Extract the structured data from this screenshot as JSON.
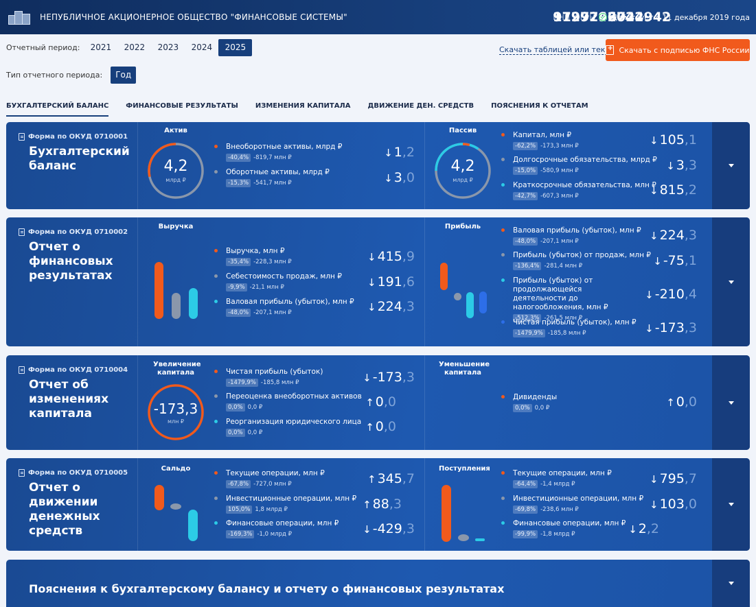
{
  "header": {
    "company": "НЕПУБЛИЧНОЕ АКЦИОНЕРНОЕ ОБЩЕСТВО \"ФИНАНСОВЫЕ СИСТЕМЫ\"",
    "inn_label": "ИНН",
    "inn": "9729292044",
    "ogrn_label": "ОГРН",
    "ogrn": "1197746722942",
    "status": "Действует с 11 декабря 2019 года"
  },
  "filters": {
    "period_label": "Отчетный период:",
    "years": [
      "2021",
      "2022",
      "2023",
      "2024",
      "2025"
    ],
    "selected_year": "2025",
    "type_label": "Тип отчетного периода:",
    "type_value": "Год",
    "download_link": "Скачать таблицей или текстом",
    "download_button": "Скачать с подписью ФНС России"
  },
  "tabs": [
    "БУХГАЛТЕРСКИЙ БАЛАНС",
    "ФИНАНСОВЫЕ РЕЗУЛЬТАТЫ",
    "ИЗМЕНЕНИЯ КАПИТАЛА",
    "ДВИЖЕНИЕ ДЕН. СРЕДСТВ",
    "ПОЯСНЕНИЯ К ОТЧЕТАМ"
  ],
  "colors": {
    "orange": "#f15a1c",
    "grey": "#8a97ab",
    "cyan": "#2ccbe6",
    "blue": "#2d6ee8"
  },
  "cards": {
    "balance": {
      "okud": "Форма по ОКУД 0710001",
      "title": "Бухгалтерский баланс",
      "left": {
        "title": "Актив",
        "ring_value": "4,2",
        "ring_unit": "млрд ₽",
        "items": [
          {
            "name": "Внеоборотные активы, млрд ₽",
            "pct": "-40,4%",
            "abs": "-819,7 млн ₽",
            "arrow": "↓",
            "int": "1",
            "frac": ",2",
            "color": "orange"
          },
          {
            "name": "Оборотные активы, млрд ₽",
            "pct": "-15,3%",
            "abs": "-541,7 млн ₽",
            "arrow": "↓",
            "int": "3",
            "frac": ",0",
            "color": "grey"
          }
        ]
      },
      "right": {
        "title": "Пассив",
        "ring_value": "4,2",
        "ring_unit": "млрд ₽",
        "items": [
          {
            "name": "Капитал, млн ₽",
            "pct": "-62,2%",
            "abs": "-173,3 млн ₽",
            "arrow": "↓",
            "int": "105",
            "frac": ",1",
            "color": "orange"
          },
          {
            "name": "Долгосрочные обязательства, млрд ₽",
            "pct": "-15,0%",
            "abs": "-580,9 млн ₽",
            "arrow": "↓",
            "int": "3",
            "frac": ",3",
            "color": "grey"
          },
          {
            "name": "Краткосрочные обязательства, млн ₽",
            "pct": "-42,7%",
            "abs": "-607,3 млн ₽",
            "arrow": "↓",
            "int": "815",
            "frac": ",2",
            "color": "cyan"
          }
        ]
      }
    },
    "results": {
      "okud": "Форма по ОКУД 0710002",
      "title": "Отчет о финансовых результатах",
      "left": {
        "title": "Выручка",
        "items": [
          {
            "name": "Выручка, млн ₽",
            "pct": "-35,4%",
            "abs": "-228,3 млн ₽",
            "arrow": "↓",
            "int": "415",
            "frac": ",9",
            "color": "orange"
          },
          {
            "name": "Себестоимость продаж, млн ₽",
            "pct": "-9,9%",
            "abs": "-21,1 млн ₽",
            "arrow": "↓",
            "int": "191",
            "frac": ",6",
            "color": "grey"
          },
          {
            "name": "Валовая прибыль (убыток), млн ₽",
            "pct": "-48,0%",
            "abs": "-207,1 млн ₽",
            "arrow": "↓",
            "int": "224",
            "frac": ",3",
            "color": "cyan"
          }
        ]
      },
      "right": {
        "title": "Прибыль",
        "items": [
          {
            "name": "Валовая прибыль (убыток), млн ₽",
            "pct": "-48,0%",
            "abs": "-207,1 млн ₽",
            "arrow": "↓",
            "int": "224",
            "frac": ",3",
            "color": "orange"
          },
          {
            "name": "Прибыль (убыток) от продаж, млн ₽",
            "pct": "-136,4%",
            "abs": "-281,4 млн ₽",
            "arrow": "↓",
            "int": "-75",
            "frac": ",1",
            "color": "grey"
          },
          {
            "name": "Прибыль (убыток) от продолжающейся деятельности до налогообложения, млн ₽",
            "pct": "-512,3%",
            "abs": "-261,5 млн ₽",
            "arrow": "↓",
            "int": "-210",
            "frac": ",4",
            "color": "cyan"
          },
          {
            "name": "Чистая прибыль (убыток), млн ₽",
            "pct": "-1479,9%",
            "abs": "-185,8 млн ₽",
            "arrow": "↓",
            "int": "-173",
            "frac": ",3",
            "color": "blue"
          }
        ]
      }
    },
    "capital": {
      "okud": "Форма по ОКУД 0710004",
      "title": "Отчет об изменениях капитала",
      "left": {
        "title": "Увеличение капитала",
        "ring_value": "-173,3",
        "ring_unit": "млн ₽",
        "items": [
          {
            "name": "Чистая прибыль (убыток)",
            "pct": "-1479,9%",
            "abs": "-185,8 млн ₽",
            "arrow": "↓",
            "int": "-173",
            "frac": ",3",
            "color": "orange"
          },
          {
            "name": "Переоценка внеоборотных активов",
            "pct": "0,0%",
            "abs": "0,0 ₽",
            "arrow": "↑",
            "int": "0",
            "frac": ",0",
            "color": "grey"
          },
          {
            "name": "Реорганизация юридического лица",
            "pct": "0,0%",
            "abs": "0,0 ₽",
            "arrow": "↑",
            "int": "0",
            "frac": ",0",
            "color": "cyan"
          }
        ]
      },
      "right": {
        "title": "Уменьшение капитала",
        "items": [
          {
            "name": "Дивиденды",
            "pct": "0,0%",
            "abs": "0,0 ₽",
            "arrow": "↑",
            "int": "0",
            "frac": ",0",
            "color": "orange"
          }
        ]
      }
    },
    "cashflow": {
      "okud": "Форма по ОКУД 0710005",
      "title": "Отчет о движении денежных средств",
      "left": {
        "title": "Сальдо",
        "items": [
          {
            "name": "Текущие операции, млн ₽",
            "pct": "-67,8%",
            "abs": "-727,0 млн ₽",
            "arrow": "↑",
            "int": "345",
            "frac": ",7",
            "color": "orange"
          },
          {
            "name": "Инвестиционные операции, млн ₽",
            "pct": "105,0%",
            "abs": "1,8 млрд ₽",
            "arrow": "↑",
            "int": "88",
            "frac": ",3",
            "color": "grey"
          },
          {
            "name": "Финансовые операции, млн ₽",
            "pct": "-169,3%",
            "abs": "-1,0 млрд ₽",
            "arrow": "↓",
            "int": "-429",
            "frac": ",3",
            "color": "cyan"
          }
        ]
      },
      "right": {
        "title": "Поступления",
        "items": [
          {
            "name": "Текущие операции, млн ₽",
            "pct": "-64,4%",
            "abs": "-1,4 млрд ₽",
            "arrow": "↓",
            "int": "795",
            "frac": ",7",
            "color": "orange"
          },
          {
            "name": "Инвестиционные операции, млн ₽",
            "pct": "-69,8%",
            "abs": "-238,6 млн ₽",
            "arrow": "↓",
            "int": "103",
            "frac": ",0",
            "color": "grey"
          },
          {
            "name": "Финансовые операции, млн ₽",
            "pct": "-99,9%",
            "abs": "-1,8 млрд ₽",
            "arrow": "↓",
            "int": "2",
            "frac": ",2",
            "color": "cyan"
          }
        ]
      }
    },
    "notes": {
      "title": "Пояснения к бухгалтерскому балансу и отчету о финансовых результатах"
    }
  }
}
